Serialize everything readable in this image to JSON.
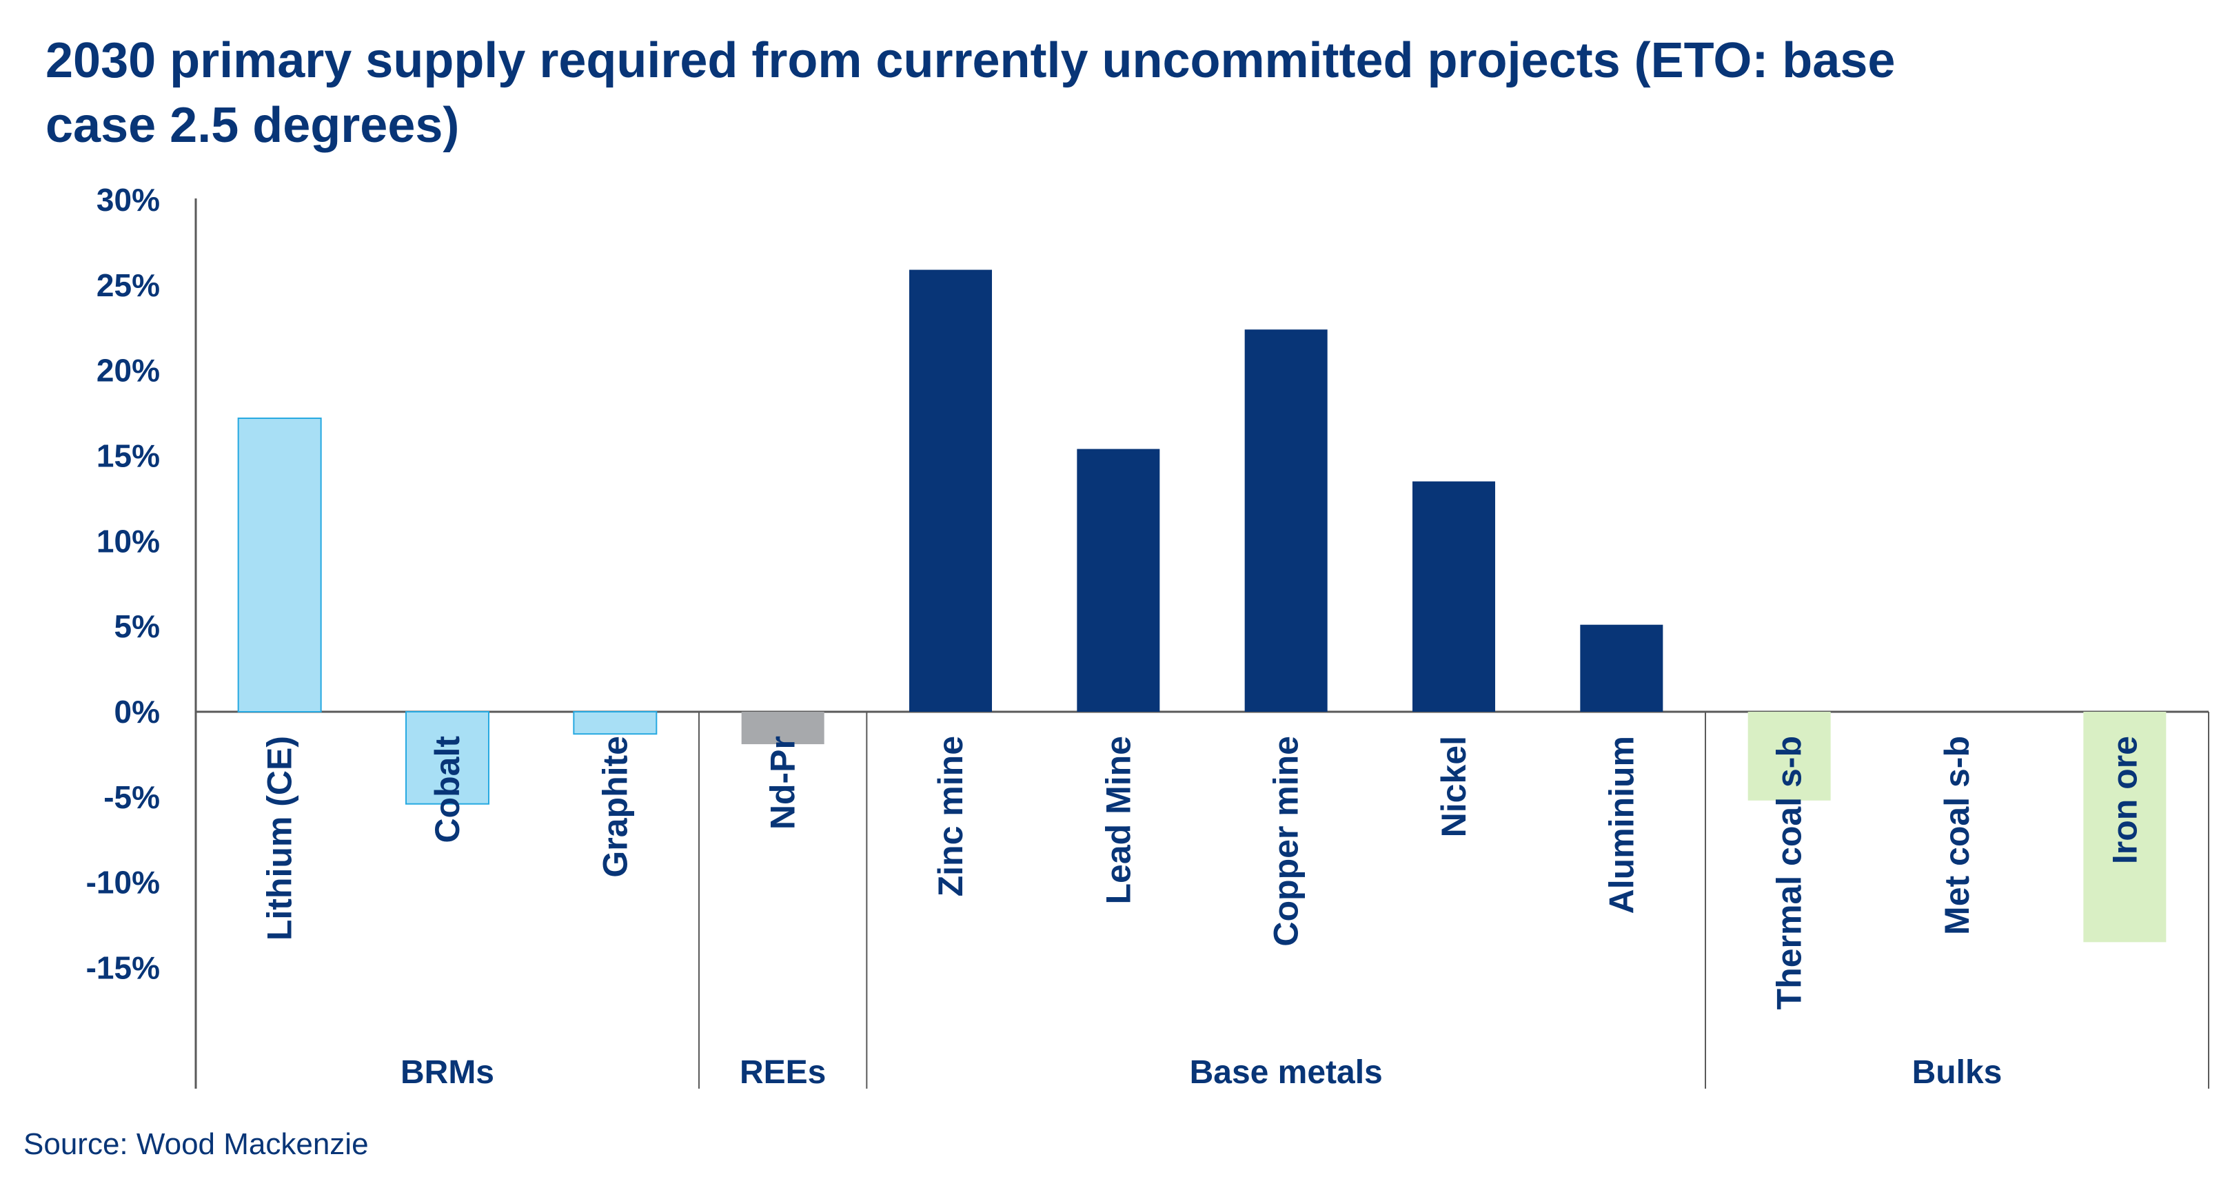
{
  "chart_data": {
    "type": "bar",
    "title": "2030 primary supply required from currently uncommitted projects (ETO: base case 2.5 degrees)",
    "title_lines": [
      "2030 primary supply required from currently uncommitted projects (ETO: base",
      "case 2.5 degrees)"
    ],
    "categories": [
      "Lithium (CE)",
      "Cobalt",
      "Graphite",
      "Nd-Pr",
      "Zinc mine",
      "Lead Mine",
      "Copper mine",
      "Nickel",
      "Aluminium",
      "Thermal coal s-b",
      "Met coal s-b",
      "Iron ore"
    ],
    "values": [
      17.2,
      -5.4,
      -1.3,
      -1.9,
      25.9,
      15.4,
      22.4,
      13.5,
      5.1,
      -5.2,
      0,
      -13.5
    ],
    "groups": [
      {
        "label": "BRMs",
        "categories": [
          "Lithium (CE)",
          "Cobalt",
          "Graphite"
        ],
        "color": "#a8dff5",
        "border": "#27a9e1"
      },
      {
        "label": "REEs",
        "categories": [
          "Nd-Pr"
        ],
        "color": "#a7a9ac",
        "border": ""
      },
      {
        "label": "Base metals",
        "categories": [
          "Zinc mine",
          "Lead Mine",
          "Copper mine",
          "Nickel",
          "Aluminium"
        ],
        "color": "#083577",
        "border": ""
      },
      {
        "label": "Bulks",
        "categories": [
          "Thermal coal s-b",
          "Met coal s-b",
          "Iron ore"
        ],
        "color": "#d9efc4",
        "border": ""
      }
    ],
    "yticks": [
      "30%",
      "25%",
      "20%",
      "15%",
      "10%",
      "5%",
      "0%",
      "-5%",
      "-10%",
      "-15%"
    ],
    "ytick_values": [
      30,
      25,
      20,
      15,
      10,
      5,
      0,
      -5,
      -10,
      -15
    ],
    "ylim": [
      -15,
      30
    ],
    "yunit": "%",
    "grid": false,
    "legend": "none"
  },
  "source": "Source: Wood Mackenzie",
  "colors": {
    "text": "#083577",
    "axis": "#5a5a5a"
  }
}
